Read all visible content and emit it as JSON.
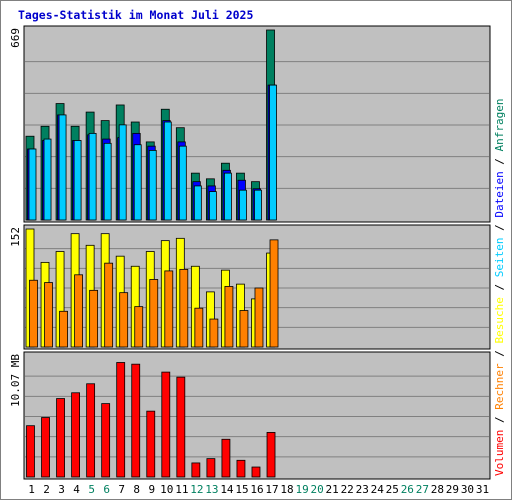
{
  "chart_data": {
    "type": "bar",
    "title": "Tages-Statistik im Monat Juli 2025",
    "x": [
      "1",
      "2",
      "3",
      "4",
      "5",
      "6",
      "7",
      "8",
      "9",
      "10",
      "11",
      "12",
      "13",
      "14",
      "15",
      "16",
      "17",
      "18",
      "19",
      "20",
      "21",
      "22",
      "23",
      "24",
      "25",
      "26",
      "27",
      "28",
      "29",
      "30",
      "31"
    ],
    "weekend_days": [
      "5",
      "6",
      "12",
      "13",
      "19",
      "20",
      "26",
      "27"
    ],
    "panels": [
      {
        "id": "top",
        "max_label": "669",
        "ymax": 669,
        "series": [
          {
            "name": "Anfragen",
            "color": "#008060",
            "values": [
              295,
              330,
              410,
              330,
              380,
              350,
              405,
              345,
              275,
              390,
              325,
              165,
              145,
              200,
              165,
              135,
              669,
              0,
              0,
              0,
              0,
              0,
              0,
              0,
              0,
              0,
              0,
              0,
              0,
              0,
              0
            ]
          },
          {
            "name": "Dateien",
            "color": "#0000ff",
            "values": [
              250,
              280,
              370,
              280,
              300,
              285,
              290,
              305,
              260,
              350,
              275,
              135,
              120,
              175,
              140,
              110,
              475,
              0,
              0,
              0,
              0,
              0,
              0,
              0,
              0,
              0,
              0,
              0,
              0,
              0,
              0
            ]
          },
          {
            "name": "Seiten",
            "color": "#00ccff",
            "values": [
              250,
              285,
              370,
              280,
              305,
              270,
              335,
              265,
              245,
              345,
              260,
              120,
              100,
              165,
              105,
              105,
              475,
              0,
              0,
              0,
              0,
              0,
              0,
              0,
              0,
              0,
              0,
              0,
              0,
              0,
              0
            ]
          }
        ]
      },
      {
        "id": "middle",
        "max_label": "152",
        "ymax": 152,
        "series": [
          {
            "name": "Besuche",
            "color": "#ffff00",
            "values": [
              152,
              109,
              123,
              146,
              131,
              146,
              117,
              104,
              123,
              137,
              140,
              104,
              71,
              99,
              81,
              62,
              121,
              0,
              0,
              0,
              0,
              0,
              0,
              0,
              0,
              0,
              0,
              0,
              0,
              0,
              0
            ]
          },
          {
            "name": "Rechner",
            "color": "#ff8000",
            "values": [
              86,
              83,
              46,
              93,
              73,
              108,
              70,
              52,
              87,
              98,
              100,
              50,
              36,
              78,
              47,
              76,
              138,
              0,
              0,
              0,
              0,
              0,
              0,
              0,
              0,
              0,
              0,
              0,
              0,
              0,
              0
            ]
          }
        ]
      },
      {
        "id": "bottom",
        "max_label": "10.07 MB",
        "ymax": 10.07,
        "series": [
          {
            "name": "Volumen",
            "color": "#ff0000",
            "values": [
              4.27,
              4.95,
              6.53,
              7.01,
              7.76,
              6.11,
              9.53,
              9.39,
              5.48,
              8.73,
              8.31,
              1.17,
              1.53,
              3.14,
              1.39,
              0.83,
              3.71,
              0,
              0,
              0,
              0,
              0,
              0,
              0,
              0,
              0,
              0,
              0,
              0,
              0,
              0
            ]
          }
        ]
      }
    ],
    "legend": [
      "Volumen",
      "Rechner",
      "Besuche",
      "Seiten",
      "Dateien",
      "Anfragen"
    ],
    "legend_separator": "/",
    "legend_placement": "right-vertical",
    "grid": true
  },
  "colors": {
    "plot_bg": "#c0c0c0",
    "grid": "#808080",
    "weekday_label": "#000000",
    "weekend_label": "#008060"
  }
}
